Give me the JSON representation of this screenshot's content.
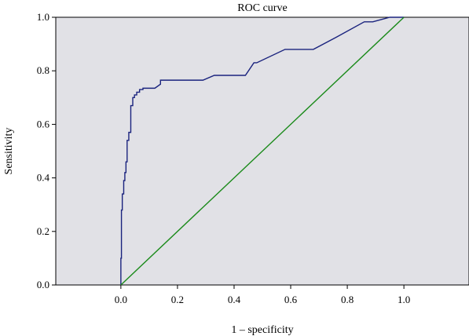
{
  "chart_data": {
    "type": "line",
    "title": "ROC curve",
    "xlabel": "1 – specificity",
    "ylabel": "Sensitivity",
    "xlim": [
      -0.23,
      1.23
    ],
    "ylim": [
      0.0,
      1.0
    ],
    "x_ticks": [
      0.0,
      0.2,
      0.4,
      0.6,
      0.8,
      1.0
    ],
    "x_tick_labels": [
      "0.0",
      "0.2",
      "0.4",
      "0.6",
      "0.8",
      "1.0"
    ],
    "y_ticks": [
      0.0,
      0.2,
      0.4,
      0.6,
      0.8,
      1.0
    ],
    "y_tick_labels": [
      "0.0",
      "0.2",
      "0.4",
      "0.6",
      "0.8",
      "1.0"
    ],
    "grid": false,
    "background_color": "#e1e1e6",
    "series": [
      {
        "color": "#1a237e",
        "x": [
          0.0,
          0.0,
          0.002,
          0.002,
          0.005,
          0.005,
          0.01,
          0.01,
          0.014,
          0.014,
          0.018,
          0.018,
          0.022,
          0.022,
          0.028,
          0.028,
          0.035,
          0.035,
          0.042,
          0.042,
          0.048,
          0.048,
          0.056,
          0.056,
          0.066,
          0.066,
          0.078,
          0.078,
          0.12,
          0.14,
          0.14,
          0.29,
          0.33,
          0.44,
          0.47,
          0.48,
          0.58,
          0.68,
          0.76,
          0.86,
          0.89,
          0.95,
          1.0
        ],
        "y": [
          0.0,
          0.1,
          0.1,
          0.28,
          0.28,
          0.34,
          0.34,
          0.39,
          0.39,
          0.42,
          0.42,
          0.46,
          0.46,
          0.54,
          0.54,
          0.57,
          0.57,
          0.67,
          0.67,
          0.7,
          0.7,
          0.71,
          0.71,
          0.72,
          0.72,
          0.73,
          0.73,
          0.735,
          0.735,
          0.75,
          0.765,
          0.765,
          0.783,
          0.783,
          0.83,
          0.83,
          0.88,
          0.88,
          0.925,
          0.983,
          0.983,
          1.0,
          1.0
        ]
      },
      {
        "color": "#1a8a1a",
        "x": [
          0.0,
          1.0
        ],
        "y": [
          0.0,
          1.0
        ]
      }
    ]
  }
}
